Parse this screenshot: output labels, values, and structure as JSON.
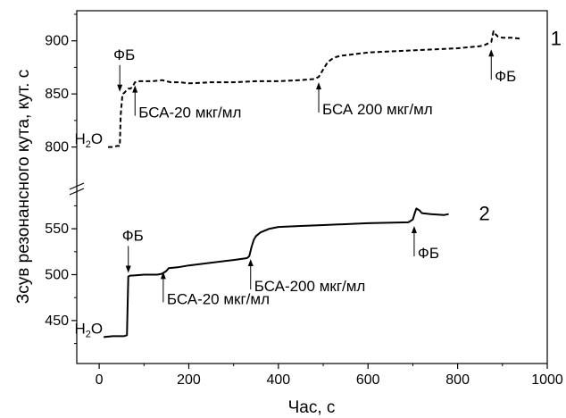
{
  "chart_data": {
    "type": "line",
    "xlabel": "Час, с",
    "ylabel": "Зсув резонансного кута, кут. с",
    "xlim": [
      -50,
      1000
    ],
    "x_ticks": [
      0,
      200,
      400,
      600,
      800,
      1000
    ],
    "x_tick_labels": [
      "0",
      "200",
      "400",
      "600",
      "800",
      "1000"
    ],
    "y_axis_broken": true,
    "upper_panel": {
      "ylim": [
        782,
        925
      ],
      "y_ticks": [
        800,
        850,
        900
      ],
      "y_tick_labels": [
        "800",
        "850",
        "900"
      ]
    },
    "lower_panel": {
      "ylim": [
        410,
        590
      ],
      "y_ticks": [
        450,
        500,
        550
      ],
      "y_tick_labels": [
        "450",
        "500",
        "550"
      ]
    },
    "series": [
      {
        "name": "1",
        "panel": "upper",
        "style": "dashed",
        "color": "#000000",
        "x": [
          20,
          30,
          40,
          46,
          48,
          52,
          56,
          60,
          65,
          70,
          75,
          80,
          90,
          100,
          120,
          140,
          150,
          160,
          180,
          200,
          250,
          300,
          350,
          400,
          450,
          480,
          490,
          500,
          510,
          520,
          530,
          540,
          560,
          600,
          650,
          700,
          750,
          800,
          850,
          860,
          870,
          875,
          880,
          885,
          890,
          900,
          920,
          940
        ],
        "y": [
          800,
          800,
          801,
          801,
          830,
          850,
          851,
          853,
          855,
          855,
          857,
          861,
          862,
          862,
          862,
          863,
          862,
          861,
          861,
          860,
          861,
          861,
          862,
          862,
          863,
          864,
          866,
          873,
          880,
          883,
          885,
          886,
          887,
          889,
          890,
          891,
          892,
          893,
          895,
          896,
          898,
          899,
          909,
          906,
          904,
          903,
          903,
          902
        ]
      },
      {
        "name": "2",
        "panel": "lower",
        "style": "solid",
        "color": "#000000",
        "x": [
          10,
          30,
          55,
          62,
          65,
          70,
          75,
          100,
          130,
          140,
          150,
          155,
          175,
          200,
          250,
          300,
          330,
          335,
          340,
          345,
          350,
          360,
          380,
          400,
          450,
          500,
          600,
          690,
          700,
          705,
          708,
          715,
          720,
          740,
          770,
          780
        ],
        "y": [
          432,
          433,
          433,
          434,
          498,
          499,
          499,
          500,
          500,
          501,
          504,
          507,
          508,
          510,
          513,
          516,
          518,
          520,
          530,
          538,
          542,
          546,
          550,
          552,
          553,
          554,
          556,
          557,
          560,
          568,
          572,
          570,
          567,
          566,
          565,
          566
        ]
      }
    ],
    "annotations": [
      {
        "text": "ФБ",
        "panel": "upper",
        "x": 46,
        "y": 852,
        "label_pos": "above"
      },
      {
        "text": "БСА-20 мкг/мл",
        "panel": "upper",
        "x": 80,
        "y": 858,
        "label_pos": "below"
      },
      {
        "text": "БСА 200 мкг/мл",
        "panel": "upper",
        "x": 490,
        "y": 861,
        "label_pos": "below"
      },
      {
        "text": "ФБ",
        "panel": "upper",
        "x": 875,
        "y": 892,
        "label_pos": "below"
      },
      {
        "text": "ФБ",
        "panel": "lower",
        "x": 65,
        "y": 502,
        "label_pos": "above"
      },
      {
        "text": "БСА-20 мкг/мл",
        "panel": "lower",
        "x": 143,
        "y": 503,
        "label_pos": "below"
      },
      {
        "text": "БСА-200 мкг/мл",
        "panel": "lower",
        "x": 338,
        "y": 517,
        "label_pos": "below"
      },
      {
        "text": "ФБ",
        "panel": "lower",
        "x": 703,
        "y": 553,
        "label_pos": "below"
      }
    ],
    "h2o_labels": [
      {
        "panel": "upper",
        "x": 40,
        "y": 803
      },
      {
        "panel": "lower",
        "x": 40,
        "y": 436
      }
    ]
  }
}
